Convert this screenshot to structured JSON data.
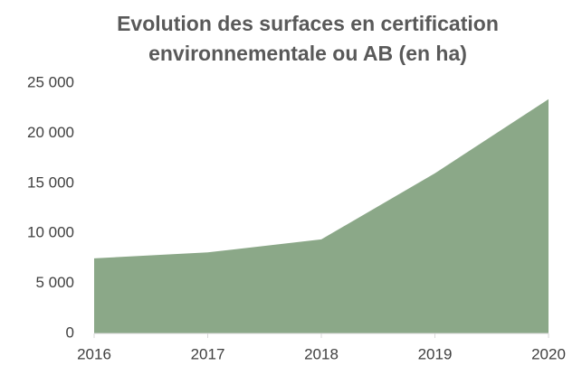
{
  "chart_data": {
    "type": "area",
    "title": "Evolution des surfaces en certification environnementale ou AB (en ha)",
    "x": [
      2016,
      2017,
      2018,
      2019,
      2020
    ],
    "series": [
      {
        "color": "#8ba888",
        "values": [
          7500,
          8100,
          9400,
          16000,
          23400
        ]
      }
    ],
    "xlim": [
      2016,
      2020
    ],
    "xticks": [
      2016,
      2017,
      2018,
      2019,
      2020
    ],
    "ylim": [
      0,
      25000
    ],
    "yticks": [
      0,
      {
        "value": 5000,
        "label": "5 000"
      },
      {
        "value": 10000,
        "label": "10 000"
      },
      {
        "value": 15000,
        "label": "15 000"
      },
      {
        "value": 20000,
        "label": "20 000"
      },
      {
        "value": 25000,
        "label": "25 000"
      }
    ],
    "grid": false
  }
}
